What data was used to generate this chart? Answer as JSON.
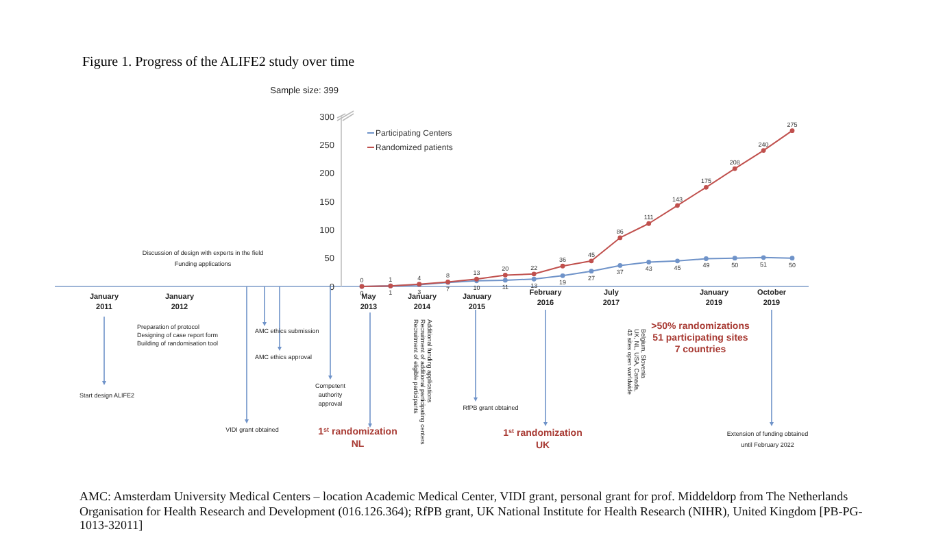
{
  "chart_data": {
    "type": "line",
    "title": "Figure 1. Progress of the ALIFE2 study over time",
    "categories": [
      null,
      null,
      null,
      null,
      null,
      null,
      null,
      null,
      null,
      null,
      null,
      null,
      null,
      null,
      null,
      null
    ],
    "series": [
      {
        "name": "Participating Centers",
        "color": "#6f93c9",
        "values": [
          0,
          1,
          3,
          7,
          10,
          11,
          13,
          19,
          27,
          37,
          43,
          45,
          49,
          50,
          51,
          50
        ]
      },
      {
        "name": "Randomized patients",
        "color": "#c0504d",
        "values": [
          0,
          1,
          4,
          8,
          13,
          20,
          22,
          36,
          45,
          86,
          111,
          143,
          175,
          208,
          240,
          275
        ]
      }
    ],
    "ylim": [
      0,
      300
    ],
    "yticks": [
      0,
      50,
      100,
      150,
      200,
      250,
      300
    ],
    "grid": false,
    "legend": "top left",
    "marker": "circle",
    "line_style": "solid",
    "data_labels": true,
    "annotations": [
      "Sample size: 399",
      "January\n2011",
      "January\n2012",
      "May\n2013",
      "January\n2014",
      "January\n2015",
      "February\n2016",
      "July\n2017",
      "January\n2019",
      "October\n2019",
      "Discussion of design with experts in the field\nFunding applications",
      "Preparation of protocol\nDesigning of case report form\nBuilding of randomisation tool",
      "AMC ethics submission",
      "AMC ethics approval",
      "Competent\nauthority\napproval",
      "Start design ALIFE2",
      "VIDI grant obtained",
      "1$^{st}$ randomization\nNL",
      "Recruitment of eligible participants\nRecruitment of additional participating centers\nAdditional funding applications",
      "RfPB grant obtained",
      "1$^{st}$ randomization\nUK",
      "43 sites open worldwide\nUK, NL, USA, Canada,\nBelgium, Slovenia",
      ">50% randomizations\n51 participating sites\n7 countries",
      "Extension of funding obtained\nuntil February 2022",
      "AMC: Amsterdam University Medical Centers – location Academic Medical Center, VIDI grant, personal grant for prof. Middeldorp from The Netherlands Organisation for Health Research and Development (016.126.364); RfPB grant, UK National Institute for Health Research (NIHR), United Kingdom [PB-PG-1013-32011]"
    ]
  }
}
